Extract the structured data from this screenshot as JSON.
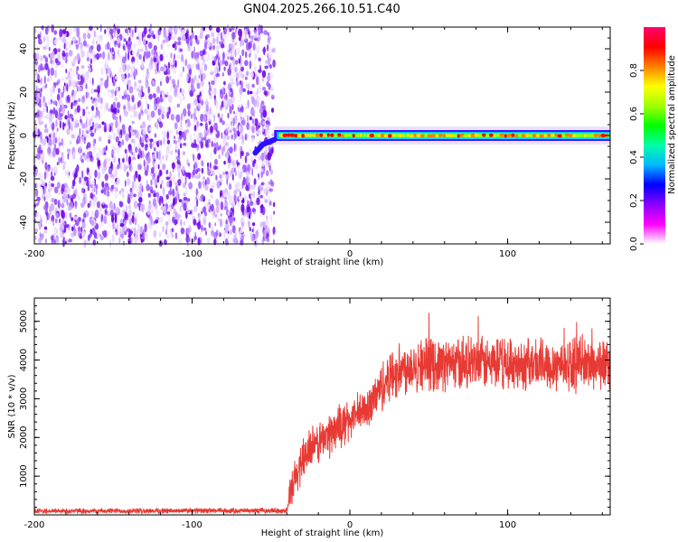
{
  "title": "GN04.2025.266.10.51.C40",
  "chart_data": [
    {
      "type": "heatmap",
      "title": "GN04.2025.266.10.51.C40",
      "xlabel": "Height of straight line (km)",
      "ylabel": "Frequency (Hz)",
      "xlim": [
        -200,
        165
      ],
      "ylim": [
        -50,
        50
      ],
      "x_ticks": [
        -200,
        -100,
        0,
        100
      ],
      "y_ticks": [
        -40,
        -20,
        0,
        20,
        40
      ],
      "colorbar": {
        "label": "Normalized spectral amplitude",
        "range": [
          0,
          1
        ],
        "ticks": [
          0.0,
          0.2,
          0.4,
          0.6,
          0.8
        ]
      },
      "noise_region_x": [
        -200,
        -48
      ],
      "signal_line": {
        "x_start": -48,
        "x_end": 165,
        "frequency": 0,
        "onset": [
          {
            "x": -60,
            "y": -8
          },
          {
            "x": -55,
            "y": -4
          },
          {
            "x": -48,
            "y": -2
          }
        ]
      },
      "colors": [
        "#ff00ff",
        "#7b2cff",
        "#0000ff",
        "#00c8ff",
        "#00ff7a",
        "#a0ff00",
        "#ffe000",
        "#ff8000",
        "#ff0000"
      ]
    },
    {
      "type": "line",
      "xlabel": "Height of straight line (km)",
      "ylabel": "SNR (10 * v/v)",
      "xlim": [
        -200,
        165
      ],
      "ylim": [
        0,
        5600
      ],
      "x_ticks": [
        -200,
        -100,
        0,
        100
      ],
      "y_ticks": [
        1000,
        2000,
        3000,
        4000,
        5000
      ],
      "color": "#e83a34",
      "trend": [
        {
          "x": -200,
          "y": 100
        },
        {
          "x": -40,
          "y": 110
        },
        {
          "x": -37,
          "y": 600
        },
        {
          "x": -30,
          "y": 1500
        },
        {
          "x": -10,
          "y": 2200
        },
        {
          "x": 10,
          "y": 2700
        },
        {
          "x": 25,
          "y": 3600
        },
        {
          "x": 40,
          "y": 3900
        },
        {
          "x": 165,
          "y": 3900
        }
      ]
    }
  ]
}
